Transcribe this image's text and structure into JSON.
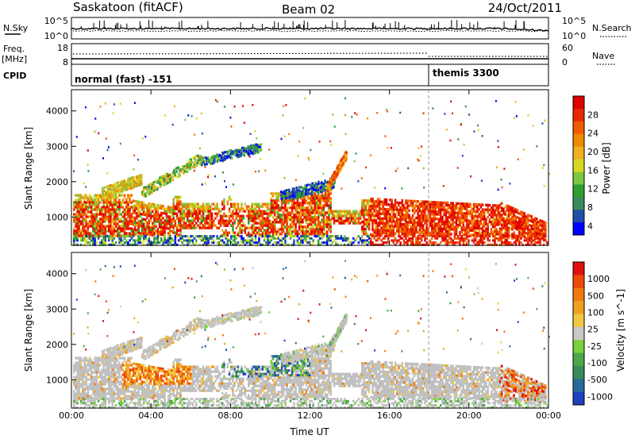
{
  "header": {
    "title": "Saskatoon (fitACF)",
    "beam": "Beam 02",
    "date": "24/Oct/2011"
  },
  "noise_panel": {
    "left_label": "N.Sky",
    "right_label": "N.Search",
    "left_ticks": [
      "10^5",
      "10^0"
    ],
    "right_ticks": [
      "10^5",
      "10^0"
    ]
  },
  "freq_panel": {
    "left_label_1": "Freq.",
    "left_label_2": "[MHz]",
    "left_ticks": [
      "18",
      "8"
    ],
    "right_label": "Nave",
    "right_ticks": [
      "60",
      "0"
    ]
  },
  "cpid_panel": {
    "label": "CPID",
    "segments": [
      {
        "name": "normal (fast) -151",
        "start_hour": 0
      },
      {
        "name": "themis 3300",
        "start_hour": 18
      }
    ]
  },
  "legend_colors": {
    "power": [
      "#0000ff",
      "#1f4fa8",
      "#3a8a5a",
      "#2fa02f",
      "#7dc840",
      "#d8d820",
      "#f0b020",
      "#f08a00",
      "#f05a00",
      "#e82800",
      "#e00000"
    ],
    "velocity": [
      "#2040c0",
      "#2a6a9a",
      "#3a8a5a",
      "#4aa84a",
      "#7ad03a",
      "#c8c8c8",
      "#f0c840",
      "#f0a020",
      "#f07a10",
      "#ee4a08",
      "#e01010"
    ],
    "ground_scatter": "#c0c0c0"
  },
  "chart_data": [
    {
      "type": "heatmap",
      "name": "power",
      "xlabel": "",
      "ylabel": "Slant Range [km]",
      "colorbar_label": "Power [dB]",
      "colorbar_ticks": [
        "28",
        "24",
        "20",
        "16",
        "12",
        "8",
        "4"
      ],
      "colorbar_range": [
        0,
        30
      ],
      "x_ticks": [
        "00:00",
        "04:00",
        "08:00",
        "12:00",
        "16:00",
        "20:00",
        "00:00"
      ],
      "xlim": [
        0,
        24
      ],
      "y_ticks": [
        "4000",
        "3000",
        "2000",
        "1000"
      ],
      "ylim": [
        200,
        4600
      ]
    },
    {
      "type": "heatmap",
      "name": "velocity",
      "xlabel": "Time UT",
      "ylabel": "Slant Range [km]",
      "colorbar_label": "Velocity [m s^-1]",
      "colorbar_ticks": [
        "1000",
        "500",
        "100",
        "25",
        "-25",
        "-100",
        "-500",
        "-1000"
      ],
      "colorbar_range": [
        -1000,
        1000
      ],
      "x_ticks": [
        "00:00",
        "04:00",
        "08:00",
        "12:00",
        "16:00",
        "20:00",
        "00:00"
      ],
      "xlim": [
        0,
        24
      ],
      "y_ticks": [
        "4000",
        "3000",
        "2000",
        "1000"
      ],
      "ylim": [
        200,
        4600
      ]
    }
  ]
}
